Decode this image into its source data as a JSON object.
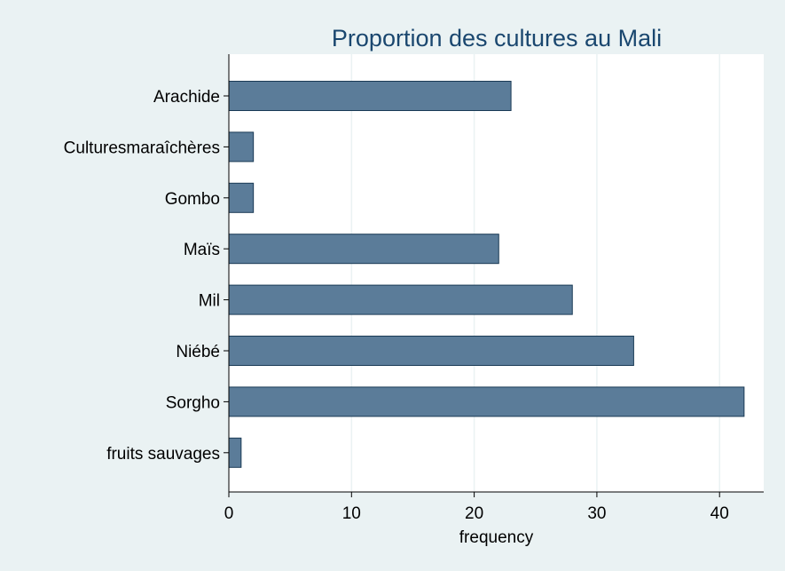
{
  "chart_data": {
    "type": "bar",
    "orientation": "horizontal",
    "title": "Proportion des cultures au Mali",
    "xlabel": "frequency",
    "ylabel": "",
    "categories": [
      "Arachide",
      "Culturesmaraîchères",
      "Gombo",
      "Maïs",
      "Mil",
      "Niébé",
      "Sorgho",
      "fruits sauvages"
    ],
    "values": [
      23,
      2,
      2,
      22,
      28,
      33,
      42,
      1
    ],
    "xlim": [
      0,
      43.6
    ],
    "xticks": [
      0,
      10,
      20,
      30,
      40
    ],
    "xtick_labels": [
      "0",
      "10",
      "20",
      "30",
      "40"
    ],
    "grid": true,
    "colors": {
      "background": "#eaf2f3",
      "plot_background": "#ffffff",
      "bar_fill": "#5b7c99",
      "bar_edge": "#1a3a55",
      "title": "#1a476f"
    }
  }
}
